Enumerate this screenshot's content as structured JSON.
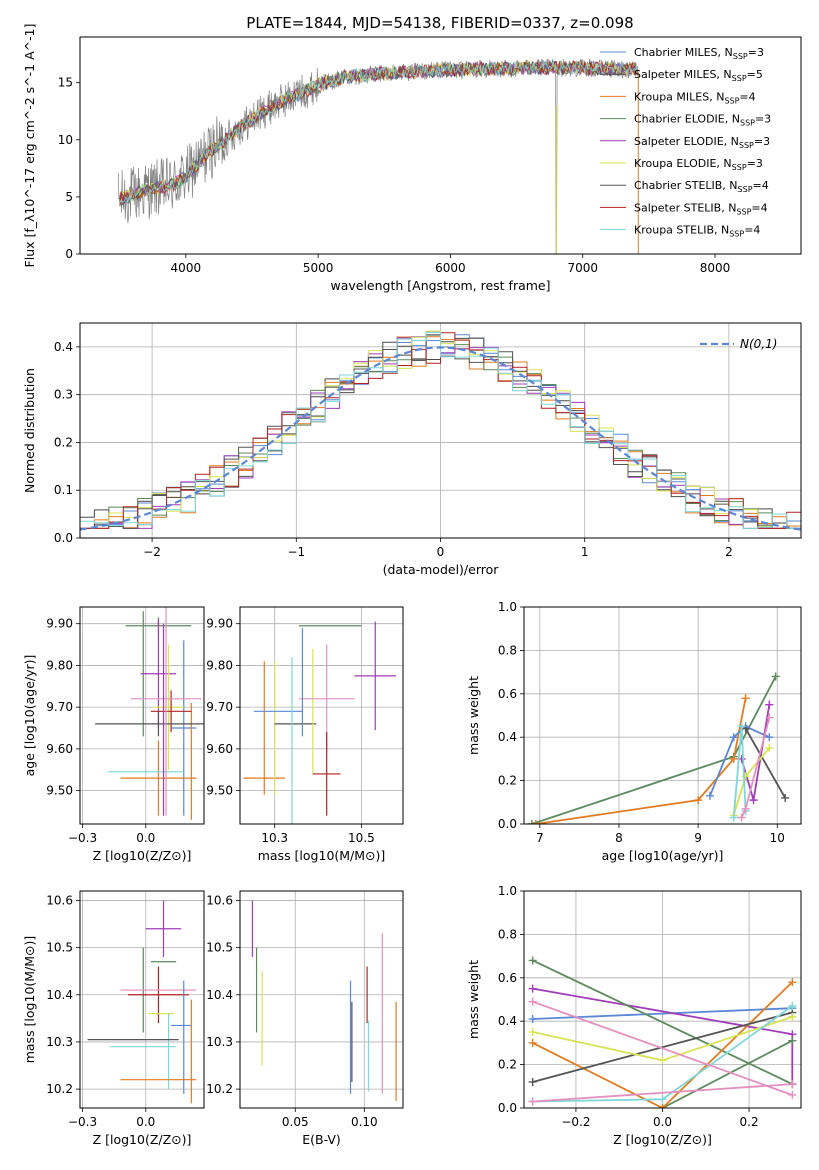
{
  "figure_title": "PLATE=1844, MJD=54138, FIBERID=0337, z=0.098",
  "colors": {
    "Chabrier MILES": "#5b87d6",
    "Salpeter MILES": "#4a4a4a",
    "Kroupa MILES": "#e07b22",
    "Chabrier ELODIE": "#5d8a5d",
    "Salpeter ELODIE": "#a03cb8",
    "Kroupa ELODIE": "#d8e355",
    "Chabrier STELIB": "#555555",
    "Salpeter STELIB": "#b22222",
    "Kroupa STELIB": "#7fd6d6",
    "pink": "#e38fbf",
    "gaussian": "#5b87d6"
  },
  "chart_data": [
    {
      "id": "spectrum",
      "type": "line",
      "title": "PLATE=1844, MJD=54138, FIBERID=0337, z=0.098",
      "xlabel": "wavelength [Angstrom, rest frame]",
      "ylabel": "Flux [f_λ10^-17 erg cm^-2 s^-1 A^-1]",
      "xlim": [
        3200,
        8650
      ],
      "ylim": [
        0,
        19
      ],
      "xticks": [
        4000,
        5000,
        6000,
        7000,
        8000
      ],
      "yticks": [
        0,
        5,
        10,
        15
      ],
      "grid": false,
      "legend_position": "top-right",
      "legend": [
        {
          "label": "Chabrier MILES, N",
          "sub": "SSP",
          "tail": "=3"
        },
        {
          "label": "Salpeter MILES, N",
          "sub": "SSP",
          "tail": "=5"
        },
        {
          "label": "Kroupa MILES, N",
          "sub": "SSP",
          "tail": "=4"
        },
        {
          "label": "Chabrier ELODIE, N",
          "sub": "SSP",
          "tail": "=3"
        },
        {
          "label": "Salpeter ELODIE, N",
          "sub": "SSP",
          "tail": "=3"
        },
        {
          "label": "Kroupa ELODIE, N",
          "sub": "SSP",
          "tail": "=3"
        },
        {
          "label": "Chabrier STELIB, N",
          "sub": "SSP",
          "tail": "=4"
        },
        {
          "label": "Salpeter STELIB, N",
          "sub": "SSP",
          "tail": "=4"
        },
        {
          "label": "Kroupa STELIB, N",
          "sub": "SSP",
          "tail": "=4"
        }
      ],
      "model_curve": {
        "x": [
          3500,
          3600,
          3700,
          3800,
          3900,
          4000,
          4100,
          4200,
          4300,
          4400,
          4500,
          4600,
          4700,
          4800,
          4900,
          5000,
          5100,
          5200,
          5400,
          5600,
          5800,
          6000,
          6200,
          6400,
          6600,
          6800,
          7000,
          7200,
          7400
        ],
        "y": [
          4.8,
          5.2,
          5.6,
          5.8,
          6.0,
          6.8,
          8.0,
          9.2,
          10.0,
          11.0,
          11.8,
          12.6,
          13.2,
          13.8,
          14.3,
          14.8,
          15.2,
          15.5,
          15.7,
          15.9,
          16.0,
          16.1,
          16.2,
          16.2,
          16.3,
          16.3,
          16.3,
          16.2,
          16.2
        ]
      },
      "observed": {
        "x_range": [
          3490,
          7420
        ],
        "description_free": true
      }
    },
    {
      "id": "residuals",
      "type": "line",
      "xlabel": "(data-model)/error",
      "ylabel": "Normed distribution",
      "xlim": [
        -2.5,
        2.5
      ],
      "ylim": [
        0,
        0.45
      ],
      "xticks": [
        -2,
        -1,
        0,
        1,
        2
      ],
      "yticks": [
        0.0,
        0.1,
        0.2,
        0.3,
        0.4
      ],
      "grid": true,
      "legend_position": "top-right",
      "legend": [
        {
          "label": "N(0,1)"
        }
      ],
      "gaussian": {
        "mean": 0,
        "sigma": 1
      }
    },
    {
      "id": "age-vs-Z",
      "type": "scatter",
      "xlabel": "Z [log10(Z/Z⊙)]",
      "ylabel": "age [log10(age/yr)]",
      "xlim": [
        -0.26,
        0.23
      ],
      "ylim": [
        9.42,
        9.94
      ],
      "xticks": [
        -0.25,
        0.0
      ],
      "yticks": [
        9.5,
        9.6,
        9.7,
        9.8,
        9.9
      ],
      "grid": true,
      "points": [
        {
          "color": "Chabrier MILES",
          "x": 0.15,
          "xerr": 0.05,
          "y": 9.65,
          "yerr": 0.21
        },
        {
          "color": "Kroupa MILES",
          "x": 0.05,
          "xerr": 0.15,
          "y": 9.53,
          "yerr": 0.09
        },
        {
          "color": "Kroupa MILES",
          "x": 0.18,
          "xerr": 0.0,
          "y": 9.57,
          "yerr": 0.14
        },
        {
          "color": "Chabrier ELODIE",
          "x": 0.05,
          "xerr": 0.13,
          "y": 9.895,
          "yerr": 0.02
        },
        {
          "color": "Chabrier ELODIE",
          "x": -0.01,
          "xerr": 0.0,
          "y": 9.78,
          "yerr": 0.15
        },
        {
          "color": "Salpeter ELODIE",
          "x": 0.05,
          "xerr": 0.07,
          "y": 9.78,
          "yerr": 0.13
        },
        {
          "color": "Kroupa ELODIE",
          "x": 0.09,
          "xerr": 0.06,
          "y": 9.7,
          "yerr": 0.15
        },
        {
          "color": "Salpeter STELIB",
          "x": 0.1,
          "xerr": 0.08,
          "y": 9.69,
          "yerr": 0.05
        },
        {
          "color": "Chabrier STELIB",
          "x": 0.05,
          "xerr": 0.25,
          "y": 9.66,
          "yerr": 0.03
        },
        {
          "color": "Kroupa STELIB",
          "x": 0.0,
          "xerr": 0.15,
          "y": 9.545,
          "yerr": 0.0
        },
        {
          "color": "pink",
          "x": 0.08,
          "xerr": 0.14,
          "y": 9.72,
          "yerr": 0.28
        },
        {
          "color": "Salpeter ELODIE",
          "x": 0.07,
          "xerr": 0.0,
          "y": 9.67,
          "yerr": 0.23
        }
      ]
    },
    {
      "id": "age-vs-mass",
      "type": "scatter",
      "xlabel": "mass [log10(M/M⊙)]",
      "ylabel": "",
      "xlim": [
        10.15,
        10.62
      ],
      "ylim": [
        9.42,
        9.94
      ],
      "xticks": [
        10.25,
        10.5
      ],
      "yticks": [
        9.5,
        9.6,
        9.7,
        9.8,
        9.9
      ],
      "grid": true,
      "points": [
        {
          "color": "Kroupa MILES",
          "x": 10.22,
          "xerr": 0.0,
          "y": 9.65,
          "yerr": 0.16
        },
        {
          "color": "Kroupa MILES",
          "x": 10.22,
          "xerr": 0.06,
          "y": 9.53,
          "yerr": 0.0
        },
        {
          "color": "Kroupa ELODIE",
          "x": 10.25,
          "xerr": 0.0,
          "y": 9.65,
          "yerr": 0.16
        },
        {
          "color": "Chabrier MILES",
          "x": 10.26,
          "xerr": 0.07,
          "y": 9.69,
          "yerr": 0.0
        },
        {
          "color": "Chabrier STELIB",
          "x": 10.31,
          "xerr": 0.06,
          "y": 9.66,
          "yerr": 0.0
        },
        {
          "color": "Kroupa STELIB",
          "x": 10.3,
          "xerr": 0.0,
          "y": 9.62,
          "yerr": 0.2
        },
        {
          "color": "Chabrier ELODIE",
          "x": 10.41,
          "xerr": 0.09,
          "y": 9.895,
          "yerr": 0.0
        },
        {
          "color": "Kroupa ELODIE",
          "x": 10.36,
          "xerr": 0.0,
          "y": 9.69,
          "yerr": 0.15
        },
        {
          "color": "pink",
          "x": 10.4,
          "xerr": 0.08,
          "y": 9.72,
          "yerr": 0.13
        },
        {
          "color": "Salpeter STELIB",
          "x": 10.4,
          "xerr": 0.04,
          "y": 9.54,
          "yerr": 0.1
        },
        {
          "color": "Salpeter ELODIE",
          "x": 10.54,
          "xerr": 0.06,
          "y": 9.775,
          "yerr": 0.13
        },
        {
          "color": "Chabrier MILES",
          "x": 10.33,
          "xerr": 0.0,
          "y": 9.76,
          "yerr": 0.13
        }
      ]
    },
    {
      "id": "weight-vs-age",
      "type": "line",
      "xlabel": "age [log10(age/yr)]",
      "ylabel": "mass weight",
      "xlim": [
        6.8,
        10.3
      ],
      "ylim": [
        0,
        1.0
      ],
      "xticks": [
        7,
        8,
        9,
        10
      ],
      "yticks": [
        0.0,
        0.2,
        0.4,
        0.6,
        0.8,
        1.0
      ],
      "grid": true,
      "series": [
        {
          "color": "Chabrier ELODIE",
          "x": [
            6.9,
            9.45,
            9.98
          ],
          "y": [
            0.0,
            0.31,
            0.68
          ]
        },
        {
          "color": "Kroupa MILES",
          "x": [
            6.95,
            9.0,
            9.45,
            9.6
          ],
          "y": [
            0.0,
            0.11,
            0.3,
            0.58
          ]
        },
        {
          "color": "Chabrier MILES",
          "x": [
            9.15,
            9.45,
            9.6,
            9.9
          ],
          "y": [
            0.13,
            0.4,
            0.45,
            0.4
          ]
        },
        {
          "color": "Salpeter ELODIE",
          "x": [
            9.55,
            9.7,
            9.9
          ],
          "y": [
            0.3,
            0.11,
            0.55
          ]
        },
        {
          "color": "Chabrier STELIB",
          "x": [
            9.6,
            10.1
          ],
          "y": [
            0.44,
            0.12
          ]
        },
        {
          "color": "Kroupa ELODIE",
          "x": [
            9.45,
            9.6,
            9.9
          ],
          "y": [
            0.04,
            0.22,
            0.35
          ]
        },
        {
          "color": "Kroupa STELIB",
          "x": [
            9.45,
            9.55,
            9.6
          ],
          "y": [
            0.03,
            0.45,
            0.06
          ]
        },
        {
          "color": "pink",
          "x": [
            9.55,
            9.6,
            9.9
          ],
          "y": [
            0.03,
            0.07,
            0.49
          ]
        }
      ]
    },
    {
      "id": "mass-vs-Z",
      "type": "scatter",
      "xlabel": "Z [log10(Z/Z⊙)]",
      "ylabel": "mass [log10(M/M⊙)]",
      "xlim": [
        -0.26,
        0.23
      ],
      "ylim": [
        10.16,
        10.62
      ],
      "xticks": [
        -0.25,
        0.0
      ],
      "yticks": [
        10.2,
        10.3,
        10.4,
        10.5,
        10.6
      ],
      "grid": true,
      "points": [
        {
          "color": "Salpeter ELODIE",
          "x": 0.07,
          "xerr": 0.07,
          "y": 10.54,
          "yerr": 0.06
        },
        {
          "color": "Chabrier ELODIE",
          "x": 0.07,
          "xerr": 0.05,
          "y": 10.47,
          "yerr": 0.0
        },
        {
          "color": "Chabrier ELODIE",
          "x": -0.01,
          "xerr": 0.0,
          "y": 10.41,
          "yerr": 0.09
        },
        {
          "color": "Salpeter STELIB",
          "x": 0.05,
          "xerr": 0.12,
          "y": 10.4,
          "yerr": 0.06
        },
        {
          "color": "pink",
          "x": 0.05,
          "xerr": 0.15,
          "y": 10.41,
          "yerr": 0.0
        },
        {
          "color": "Chabrier MILES",
          "x": 0.15,
          "xerr": 0.0,
          "y": 10.31,
          "yerr": 0.12
        },
        {
          "color": "Chabrier MILES",
          "x": 0.14,
          "xerr": 0.04,
          "y": 10.335,
          "yerr": 0.0
        },
        {
          "color": "Kroupa ELODIE",
          "x": 0.06,
          "xerr": 0.05,
          "y": 10.36,
          "yerr": 0.0
        },
        {
          "color": "Kroupa STELIB",
          "x": 0.09,
          "xerr": 0.0,
          "y": 10.28,
          "yerr": 0.08
        },
        {
          "color": "Chabrier STELIB",
          "x": -0.05,
          "xerr": 0.18,
          "y": 10.305,
          "yerr": 0.0
        },
        {
          "color": "Kroupa STELIB",
          "x": -0.01,
          "xerr": 0.13,
          "y": 10.29,
          "yerr": 0.0
        },
        {
          "color": "Kroupa MILES",
          "x": 0.05,
          "xerr": 0.15,
          "y": 10.22,
          "yerr": 0.0
        },
        {
          "color": "Kroupa MILES",
          "x": 0.18,
          "xerr": 0.0,
          "y": 10.28,
          "yerr": 0.11
        }
      ]
    },
    {
      "id": "mass-vs-ebv",
      "type": "scatter",
      "xlabel": "E(B-V)",
      "ylabel": "",
      "xlim": [
        0.01,
        0.128
      ],
      "ylim": [
        10.16,
        10.62
      ],
      "xticks": [
        0.05,
        0.1
      ],
      "yticks": [
        10.2,
        10.3,
        10.4,
        10.5,
        10.6
      ],
      "grid": true,
      "points": [
        {
          "color": "Salpeter ELODIE",
          "x": 0.019,
          "xerr": 0.0,
          "y": 10.54,
          "yerr": 0.06
        },
        {
          "color": "Chabrier ELODIE",
          "x": 0.022,
          "xerr": 0.0,
          "y": 10.41,
          "yerr": 0.09
        },
        {
          "color": "Kroupa ELODIE",
          "x": 0.026,
          "xerr": 0.0,
          "y": 10.35,
          "yerr": 0.1
        },
        {
          "color": "Chabrier MILES",
          "x": 0.09,
          "xerr": 0.0,
          "y": 10.31,
          "yerr": 0.12
        },
        {
          "color": "Chabrier STELIB",
          "x": 0.091,
          "xerr": 0.0,
          "y": 10.3,
          "yerr": 0.085
        },
        {
          "color": "Salpeter STELIB",
          "x": 0.102,
          "xerr": 0.0,
          "y": 10.4,
          "yerr": 0.06
        },
        {
          "color": "Kroupa STELIB",
          "x": 0.103,
          "xerr": 0.0,
          "y": 10.27,
          "yerr": 0.075
        },
        {
          "color": "pink",
          "x": 0.113,
          "xerr": 0.0,
          "y": 10.36,
          "yerr": 0.17
        },
        {
          "color": "Kroupa MILES",
          "x": 0.123,
          "xerr": 0.0,
          "y": 10.28,
          "yerr": 0.105
        }
      ]
    },
    {
      "id": "weight-vs-Z",
      "type": "line",
      "xlabel": "Z [log10(Z/Z⊙)]",
      "ylabel": "mass weight",
      "xlim": [
        -0.32,
        0.32
      ],
      "ylim": [
        0,
        1.0
      ],
      "xticks": [
        -0.2,
        0.0,
        0.2
      ],
      "yticks": [
        0.0,
        0.2,
        0.4,
        0.6,
        0.8,
        1.0
      ],
      "grid": true,
      "series": [
        {
          "color": "Chabrier MILES",
          "x": [
            -0.3,
            0.3
          ],
          "y": [
            0.41,
            0.46
          ]
        },
        {
          "color": "Salpeter ELODIE",
          "x": [
            -0.3,
            0.3,
            0.3
          ],
          "y": [
            0.55,
            0.34,
            0.11
          ]
        },
        {
          "color": "Chabrier ELODIE",
          "x": [
            -0.3,
            0.3
          ],
          "y": [
            0.68,
            0.11
          ]
        },
        {
          "color": "Chabrier ELODIE",
          "x": [
            0.0,
            0.3
          ],
          "y": [
            0.0,
            0.31
          ]
        },
        {
          "color": "Kroupa MILES",
          "x": [
            -0.3,
            0.0,
            0.3
          ],
          "y": [
            0.3,
            0.0,
            0.58
          ]
        },
        {
          "color": "Chabrier STELIB",
          "x": [
            -0.3,
            0.3
          ],
          "y": [
            0.12,
            0.44
          ]
        },
        {
          "color": "Kroupa ELODIE",
          "x": [
            -0.3,
            0.0,
            0.3
          ],
          "y": [
            0.35,
            0.22,
            0.42
          ]
        },
        {
          "color": "Kroupa STELIB",
          "x": [
            -0.3,
            0.0,
            0.3
          ],
          "y": [
            0.03,
            0.04,
            0.47
          ]
        },
        {
          "color": "pink",
          "x": [
            -0.3,
            0.3
          ],
          "y": [
            0.03,
            0.11
          ]
        },
        {
          "color": "pink",
          "x": [
            -0.3,
            0.3
          ],
          "y": [
            0.49,
            0.06
          ]
        }
      ]
    }
  ]
}
